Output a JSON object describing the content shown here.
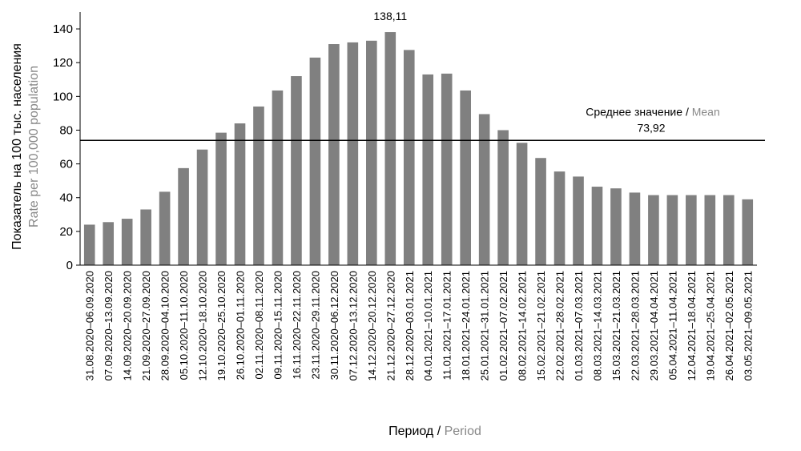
{
  "chart_data": {
    "type": "bar",
    "categories": [
      "31.08.2020–06.09.2020",
      "07.09.2020–13.09.2020",
      "14.09.2020–20.09.2020",
      "21.09.2020–27.09.2020",
      "28.09.2020–04.10.2020",
      "05.10.2020–11.10.2020",
      "12.10.2020–18.10.2020",
      "19.10.2020–25.10.2020",
      "26.10.2020–01.11.2020",
      "02.11.2020–08.11.2020",
      "09.11.2020–15.11.2020",
      "16.11.2020–22.11.2020",
      "23.11.2020–29.11.2020",
      "30.11.2020–06.12.2020",
      "07.12.2020–13.12.2020",
      "14.12.2020–20.12.2020",
      "21.12.2020–27.12.2020",
      "28.12.2020–03.01.2021",
      "04.01.2021–10.01.2021",
      "11.01.2021–17.01.2021",
      "18.01.2021–24.01.2021",
      "25.01.2021–31.01.2021",
      "01.02.2021–07.02.2021",
      "08.02.2021–14.02.2021",
      "15.02.2021–21.02.2021",
      "22.02.2021–28.02.2021",
      "01.03.2021–07.03.2021",
      "08.03.2021–14.03.2021",
      "15.03.2021–21.03.2021",
      "22.03.2021–28.03.2021",
      "29.03.2021–04.04.2021",
      "05.04.2021–11.04.2021",
      "12.04.2021–18.04.2021",
      "19.04.2021–25.04.2021",
      "26.04.2021–02.05.2021",
      "03.05.2021–09.05.2021"
    ],
    "values": [
      24,
      25.5,
      27.5,
      33,
      43.5,
      57.5,
      68.5,
      78.5,
      84,
      94,
      103.5,
      112,
      123,
      131,
      132,
      133,
      138.11,
      127.5,
      113,
      113.5,
      103.5,
      89.5,
      80,
      72.5,
      63.5,
      55.5,
      52.5,
      46.5,
      45.5,
      43,
      41.5,
      41.5,
      41.5,
      41.5,
      41.5,
      39
    ],
    "ylim": [
      0,
      150
    ],
    "yticks": [
      0,
      20,
      40,
      60,
      80,
      100,
      120,
      140
    ],
    "ylabel_ru": "Показатель на 100 тыс. населения",
    "ylabel_en": "Rate per 100,000 population",
    "xlabel_ru": "Период",
    "xlabel_en": "Period",
    "separator": "/",
    "peak_label": "138,11",
    "mean": {
      "value": 73.92,
      "label_ru": "Среднее значение",
      "label_en": "Mean",
      "value_label": "73,92"
    },
    "grid": false,
    "bar_color": "#808080",
    "line_color": "#000000",
    "secondary_text_color": "#888888"
  }
}
